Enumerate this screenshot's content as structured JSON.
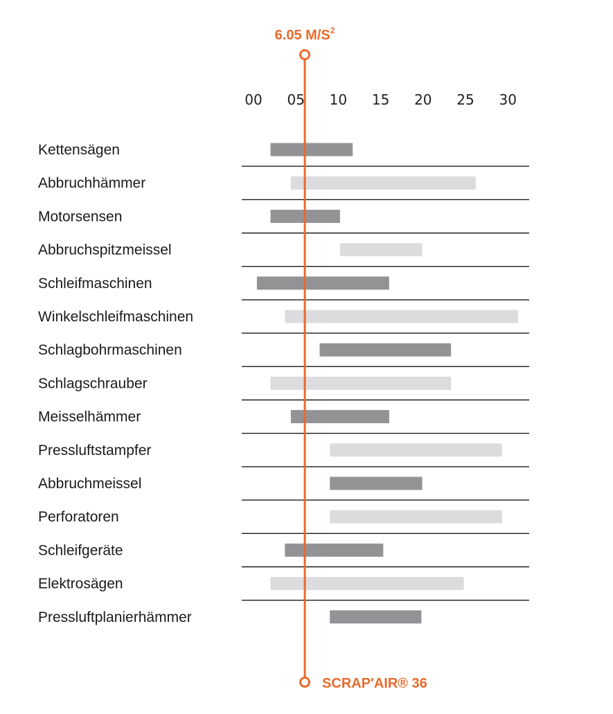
{
  "chart_data": {
    "type": "bar",
    "orientation": "horizontal-range",
    "categories": [
      "Kettensägen",
      "Abbruchhämmer",
      "Motorsensen",
      "Abbruchspitzmeissel",
      "Schleifmaschinen",
      "Winkelschleifmaschinen",
      "Schlagbohrmaschinen",
      "Schlagschrauber",
      "Meisselhämmer",
      "Pressluftstampfer",
      "Abbruchmeissel",
      "Perforatoren",
      "Schleifgeräte",
      "Elektrosägen",
      "Pressluftplanierhämmer"
    ],
    "ranges": [
      [
        2,
        11.7
      ],
      [
        4.4,
        26.2
      ],
      [
        2,
        10.2
      ],
      [
        10.2,
        19.9
      ],
      [
        0.4,
        16
      ],
      [
        3.7,
        31.2
      ],
      [
        7.8,
        23.3
      ],
      [
        2,
        23.3
      ],
      [
        4.4,
        16
      ],
      [
        9,
        29.3
      ],
      [
        9,
        19.9
      ],
      [
        9,
        29.3
      ],
      [
        3.7,
        15.3
      ],
      [
        2,
        24.8
      ],
      [
        9,
        19.8
      ]
    ],
    "shades": [
      "dark",
      "light",
      "dark",
      "light",
      "dark",
      "light",
      "dark",
      "light",
      "dark",
      "light",
      "dark",
      "light",
      "dark",
      "light",
      "dark"
    ],
    "x_ticks": [
      "00",
      "05",
      "10",
      "15",
      "20",
      "25",
      "30"
    ],
    "xlim": [
      0,
      30
    ],
    "reference": {
      "value": 6.05,
      "label": "6.05 M/S",
      "label_sup": "2",
      "name": "SCRAP'AIR® 36"
    },
    "colors": {
      "dark": "#939396",
      "light": "#dcdcde",
      "accent": "#e86a2c",
      "divider": "#1a1a1a",
      "text": "#1a1a1a"
    }
  }
}
